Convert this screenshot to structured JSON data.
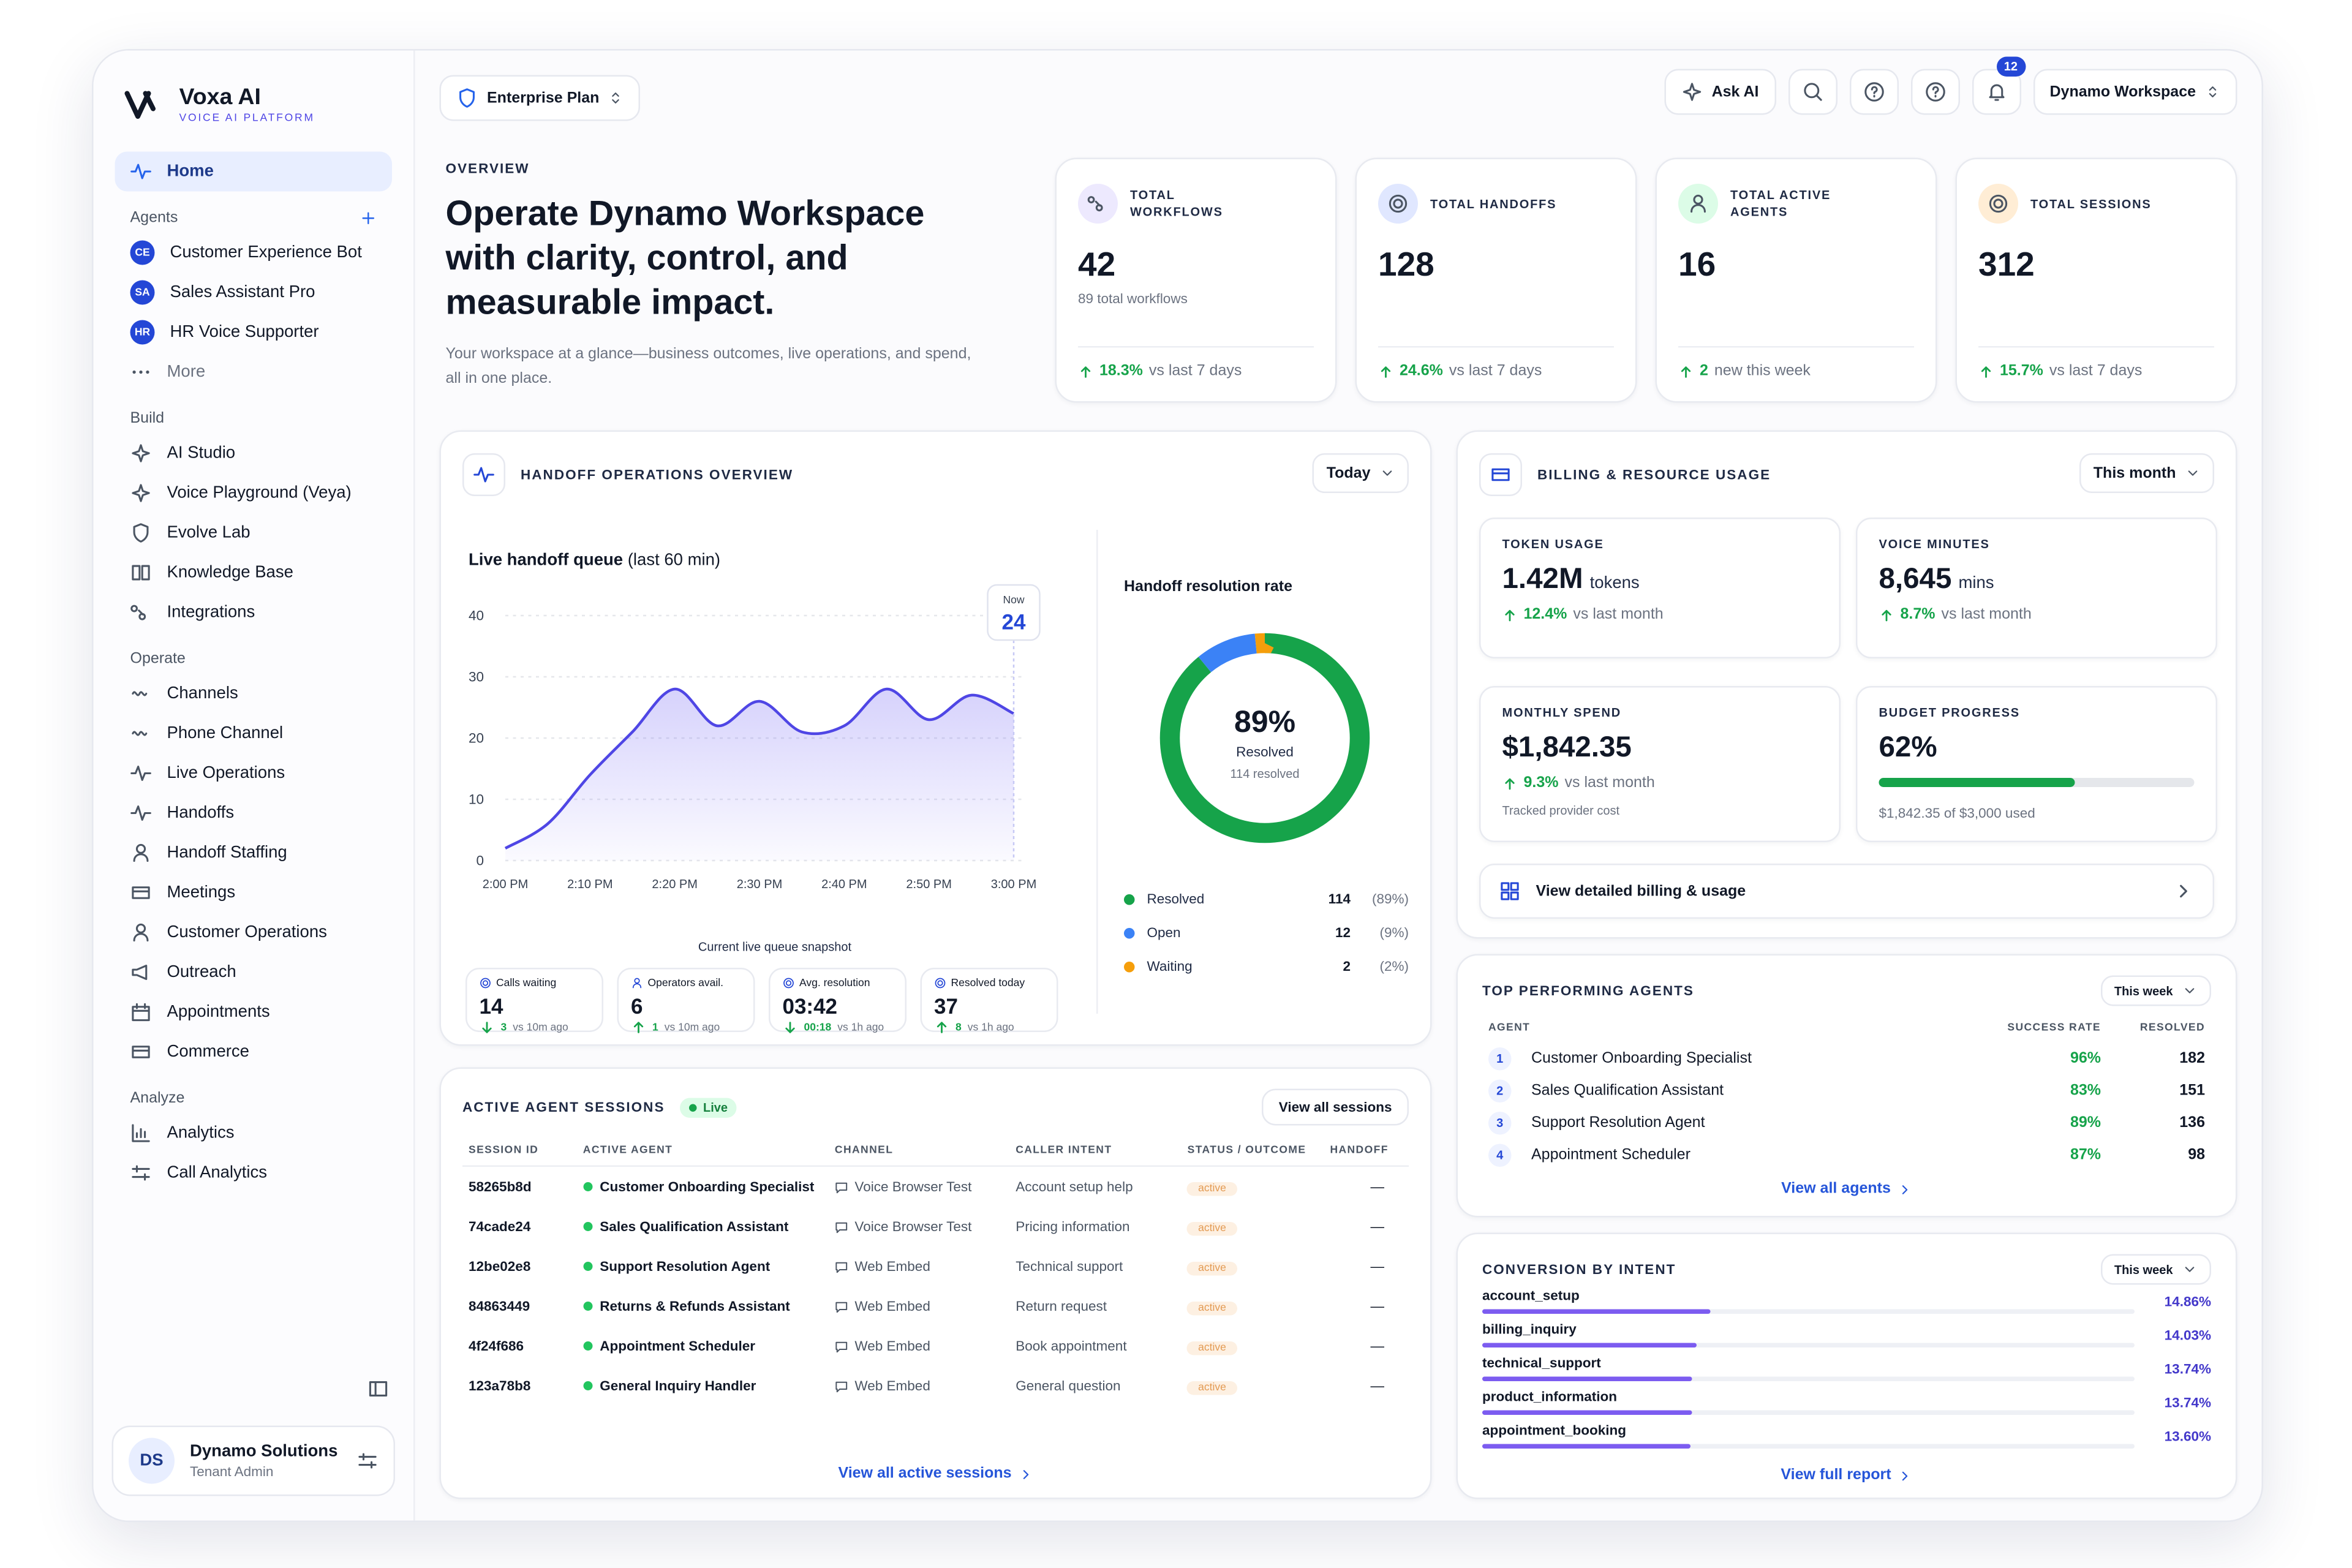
{
  "sidebar": {
    "brand": "Voxa AI",
    "tagline": "VOICE AI PLATFORM",
    "home": "Home",
    "agents_heading": "Agents",
    "agents": [
      {
        "initials": "CE",
        "name": "Customer Experience Bot"
      },
      {
        "initials": "SA",
        "name": "Sales Assistant Pro"
      },
      {
        "initials": "HR",
        "name": "HR Voice Supporter"
      }
    ],
    "more": "More",
    "build_heading": "Build",
    "build": [
      "AI Studio",
      "Voice Playground (Veya)",
      "Evolve Lab",
      "Knowledge Base",
      "Integrations"
    ],
    "operate_heading": "Operate",
    "operate": [
      "Channels",
      "Phone Channel",
      "Live Operations",
      "Handoffs",
      "Handoff Staffing",
      "Meetings",
      "Customer Operations",
      "Outreach",
      "Appointments",
      "Commerce"
    ],
    "analyze_heading": "Analyze",
    "analyze": [
      "Analytics",
      "Call Analytics"
    ],
    "user": {
      "initials": "DS",
      "name": "Dynamo Solutions",
      "role": "Tenant Admin"
    }
  },
  "topbar": {
    "plan": "Enterprise Plan",
    "ask_ai": "Ask AI",
    "notifications": 12,
    "workspace": "Dynamo Workspace"
  },
  "overview": {
    "eyebrow": "OVERVIEW",
    "title": "Operate Dynamo Workspace with clarity, control, and measurable impact.",
    "description": "Your workspace at a glance—business outcomes, live operations, and spend, all in one place."
  },
  "kpis": [
    {
      "label": "TOTAL WORKFLOWS",
      "value": 42,
      "sub": "89 total workflows",
      "delta": "18.3%",
      "delta_text": "vs last 7 days"
    },
    {
      "label": "TOTAL HANDOFFS",
      "value": 128,
      "delta": "24.6%",
      "delta_text": "vs last 7 days"
    },
    {
      "label": "TOTAL ACTIVE AGENTS",
      "value": 16,
      "delta": "2",
      "delta_text": "new this week"
    },
    {
      "label": "TOTAL SESSIONS",
      "value": 312,
      "delta": "15.7%",
      "delta_text": "vs last 7 days"
    }
  ],
  "handoff": {
    "title": "HANDOFF OPERATIONS OVERVIEW",
    "range": "Today",
    "chart_data": {
      "type": "line",
      "title": "Live handoff queue",
      "subtitle": "(last 60 min)",
      "caption": "Current live queue snapshot",
      "categories": [
        "2:00 PM",
        null,
        "2:10 PM",
        null,
        "2:20 PM",
        null,
        "2:30 PM",
        null,
        "2:40 PM",
        null,
        "2:50 PM",
        null,
        "3:00 PM"
      ],
      "series": [
        {
          "name": "Live handoff queue",
          "color": "#4f46e5",
          "values": [
            2,
            6,
            14,
            21,
            28,
            22,
            26,
            21,
            22,
            28,
            23,
            27,
            24
          ]
        }
      ],
      "ylim": [
        0,
        40
      ],
      "yticks": [
        0,
        10,
        20,
        30,
        40
      ],
      "grid": true,
      "annotation": "Now"
    },
    "stats": [
      {
        "label": "Calls waiting",
        "value": 14,
        "delta": "3",
        "delta_text": "vs 10m ago",
        "direction": "down"
      },
      {
        "label": "Operators avail.",
        "value": 6,
        "delta": "1",
        "delta_text": "vs 10m ago",
        "direction": "up"
      },
      {
        "label": "Avg. resolution",
        "value": "03:42",
        "delta": "00:18",
        "delta_text": "vs 1h ago",
        "direction": "down"
      },
      {
        "label": "Resolved today",
        "value": 37,
        "delta": "8",
        "delta_text": "vs 1h ago",
        "direction": "up"
      }
    ],
    "resolution": {
      "type": "pie",
      "title": "Handoff resolution rate",
      "center_value": "89%",
      "center_label": "Resolved",
      "center_sub": "114 resolved",
      "categories": [
        "Resolved",
        "Open",
        "Waiting"
      ],
      "values": [
        114,
        12,
        2
      ],
      "percent_labels": [
        "(89%)",
        "(9%)",
        "(2%)"
      ],
      "colors": [
        "#16a34a",
        "#3b82f6",
        "#f59e0b"
      ]
    }
  },
  "billing": {
    "title": "BILLING & RESOURCE USAGE",
    "range": "This month",
    "metrics": [
      {
        "label": "TOKEN USAGE",
        "value": "1.42M",
        "unit": "tokens",
        "delta": "12.4%",
        "delta_text": "vs last month"
      },
      {
        "label": "VOICE MINUTES",
        "value": "8,645",
        "unit": "mins",
        "delta": "8.7%",
        "delta_text": "vs last month"
      },
      {
        "label": "MONTHLY SPEND",
        "value": "$1,842.35",
        "delta": "9.3%",
        "delta_text": "vs last month",
        "note": "Tracked provider cost"
      }
    ],
    "budget": {
      "label": "BUDGET PROGRESS",
      "percent": 62,
      "percent_label": "62%",
      "detail": "$1,842.35 of $3,000 used"
    },
    "link": "View detailed billing & usage"
  },
  "top_agents": {
    "title": "TOP PERFORMING AGENTS",
    "range": "This week",
    "columns": [
      "AGENT",
      "SUCCESS RATE",
      "RESOLVED"
    ],
    "rows": [
      {
        "rank": 1,
        "name": "Customer Onboarding Specialist",
        "success": "96%",
        "resolved": 182
      },
      {
        "rank": 2,
        "name": "Sales Qualification Assistant",
        "success": "83%",
        "resolved": 151
      },
      {
        "rank": 3,
        "name": "Support Resolution Agent",
        "success": "89%",
        "resolved": 136
      },
      {
        "rank": 4,
        "name": "Appointment Scheduler",
        "success": "87%",
        "resolved": 98
      }
    ],
    "link": "View all agents"
  },
  "conversion": {
    "title": "CONVERSION BY INTENT",
    "range": "This week",
    "categories": [
      "account_setup",
      "billing_inquiry",
      "technical_support",
      "product_information",
      "appointment_booking"
    ],
    "values": [
      14.86,
      14.03,
      13.74,
      13.74,
      13.6
    ],
    "value_labels": [
      "14.86%",
      "14.03%",
      "13.74%",
      "13.74%",
      "13.60%"
    ],
    "color": "#7c5cf0",
    "link": "View full report"
  },
  "sessions": {
    "title": "ACTIVE AGENT SESSIONS",
    "badge": "Live",
    "button": "View all sessions",
    "columns": [
      "SESSION ID",
      "ACTIVE AGENT",
      "CHANNEL",
      "CALLER INTENT",
      "STATUS / OUTCOME",
      "HANDOFF"
    ],
    "rows": [
      [
        "58265b8d",
        "Customer Onboarding Specialist",
        "Voice Browser Test",
        "Account setup help",
        "active",
        "—"
      ],
      [
        "74cade24",
        "Sales Qualification Assistant",
        "Voice Browser Test",
        "Pricing information",
        "active",
        "—"
      ],
      [
        "12be02e8",
        "Support Resolution Agent",
        "Web Embed",
        "Technical support",
        "active",
        "—"
      ],
      [
        "84863449",
        "Returns & Refunds Assistant",
        "Web Embed",
        "Return request",
        "active",
        "—"
      ],
      [
        "4f24f686",
        "Appointment Scheduler",
        "Web Embed",
        "Book appointment",
        "active",
        "—"
      ],
      [
        "123a78b8",
        "General Inquiry Handler",
        "Web Embed",
        "General question",
        "active",
        "—"
      ]
    ],
    "link": "View all active sessions"
  }
}
